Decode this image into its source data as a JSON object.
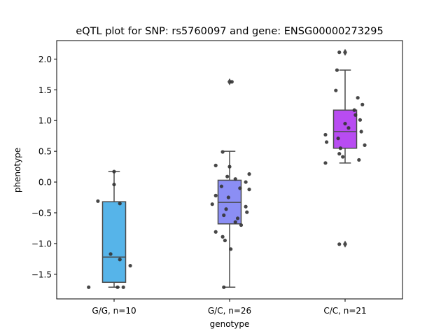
{
  "chart_data": {
    "type": "box",
    "title": "eQTL plot for SNP: rs5760097 and gene: ENSG00000273295",
    "xlabel": "genotype",
    "ylabel": "phenotype",
    "ylim": [
      -1.9,
      2.3
    ],
    "yticks": [
      -1.5,
      -1.0,
      -0.5,
      0.0,
      0.5,
      1.0,
      1.5,
      2.0
    ],
    "ytick_labels": [
      "−1.5",
      "−1.0",
      "−0.5",
      "0.0",
      "0.5",
      "1.0",
      "1.5",
      "2.0"
    ],
    "grid": false,
    "categories": [
      "G/G, n=10",
      "G/C, n=26",
      "C/C, n=21"
    ],
    "boxes": [
      {
        "color": "#56b4e9",
        "whisker_low": -1.71,
        "q1": -1.63,
        "median": -1.22,
        "q3": -0.32,
        "whisker_high": 0.17,
        "outliers": []
      },
      {
        "color": "#8b8ef4",
        "whisker_low": -1.71,
        "q1": -0.68,
        "median": -0.33,
        "q3": 0.03,
        "whisker_high": 0.5,
        "outliers": [
          1.63
        ]
      },
      {
        "color": "#b84cf2",
        "whisker_low": 0.31,
        "q1": 0.55,
        "median": 0.82,
        "q3": 1.17,
        "whisker_high": 1.82,
        "outliers": [
          2.11,
          -1.01
        ]
      }
    ],
    "points": [
      [
        {
          "dx": 0.0,
          "y": 0.17
        },
        {
          "dx": 0.0,
          "y": -0.04
        },
        {
          "dx": -0.14,
          "y": -0.31
        },
        {
          "dx": 0.05,
          "y": -0.35
        },
        {
          "dx": -0.03,
          "y": -1.17
        },
        {
          "dx": 0.05,
          "y": -1.26
        },
        {
          "dx": 0.14,
          "y": -1.36
        },
        {
          "dx": -0.22,
          "y": -1.71
        },
        {
          "dx": 0.03,
          "y": -1.71
        },
        {
          "dx": 0.08,
          "y": -1.71
        }
      ],
      [
        {
          "dx": -0.06,
          "y": 0.49
        },
        {
          "dx": -0.12,
          "y": 0.27
        },
        {
          "dx": 0.0,
          "y": 0.25
        },
        {
          "dx": 0.17,
          "y": 0.13
        },
        {
          "dx": -0.02,
          "y": 0.09
        },
        {
          "dx": 0.05,
          "y": 0.05
        },
        {
          "dx": 0.14,
          "y": 0.0
        },
        {
          "dx": -0.07,
          "y": -0.07
        },
        {
          "dx": 0.17,
          "y": -0.12
        },
        {
          "dx": -0.12,
          "y": -0.22
        },
        {
          "dx": -0.01,
          "y": -0.25
        },
        {
          "dx": 0.14,
          "y": -0.4
        },
        {
          "dx": -0.03,
          "y": -0.44
        },
        {
          "dx": 0.15,
          "y": -0.49
        },
        {
          "dx": -0.05,
          "y": -0.54
        },
        {
          "dx": 0.07,
          "y": -0.59
        },
        {
          "dx": 0.05,
          "y": -0.65
        },
        {
          "dx": -0.12,
          "y": -0.81
        },
        {
          "dx": -0.06,
          "y": -0.89
        },
        {
          "dx": -0.04,
          "y": -0.95
        },
        {
          "dx": 0.01,
          "y": -1.09
        },
        {
          "dx": -0.05,
          "y": -1.71
        },
        {
          "dx": 0.02,
          "y": 1.63
        },
        {
          "dx": 0.1,
          "y": -0.7
        },
        {
          "dx": -0.15,
          "y": -0.36
        },
        {
          "dx": 0.09,
          "y": -0.1
        }
      ],
      [
        {
          "dx": -0.05,
          "y": 2.11
        },
        {
          "dx": -0.07,
          "y": 1.82
        },
        {
          "dx": -0.08,
          "y": 1.49
        },
        {
          "dx": 0.11,
          "y": 1.37
        },
        {
          "dx": 0.15,
          "y": 1.26
        },
        {
          "dx": 0.08,
          "y": 1.17
        },
        {
          "dx": 0.09,
          "y": 1.09
        },
        {
          "dx": 0.13,
          "y": 1.01
        },
        {
          "dx": 0.0,
          "y": 0.95
        },
        {
          "dx": 0.03,
          "y": 0.88
        },
        {
          "dx": 0.14,
          "y": 0.82
        },
        {
          "dx": -0.17,
          "y": 0.77
        },
        {
          "dx": -0.06,
          "y": 0.71
        },
        {
          "dx": -0.16,
          "y": 0.65
        },
        {
          "dx": 0.17,
          "y": 0.6
        },
        {
          "dx": -0.04,
          "y": 0.55
        },
        {
          "dx": -0.05,
          "y": 0.46
        },
        {
          "dx": -0.02,
          "y": 0.41
        },
        {
          "dx": 0.12,
          "y": 0.36
        },
        {
          "dx": -0.17,
          "y": 0.31
        },
        {
          "dx": -0.05,
          "y": -1.01
        }
      ]
    ]
  }
}
